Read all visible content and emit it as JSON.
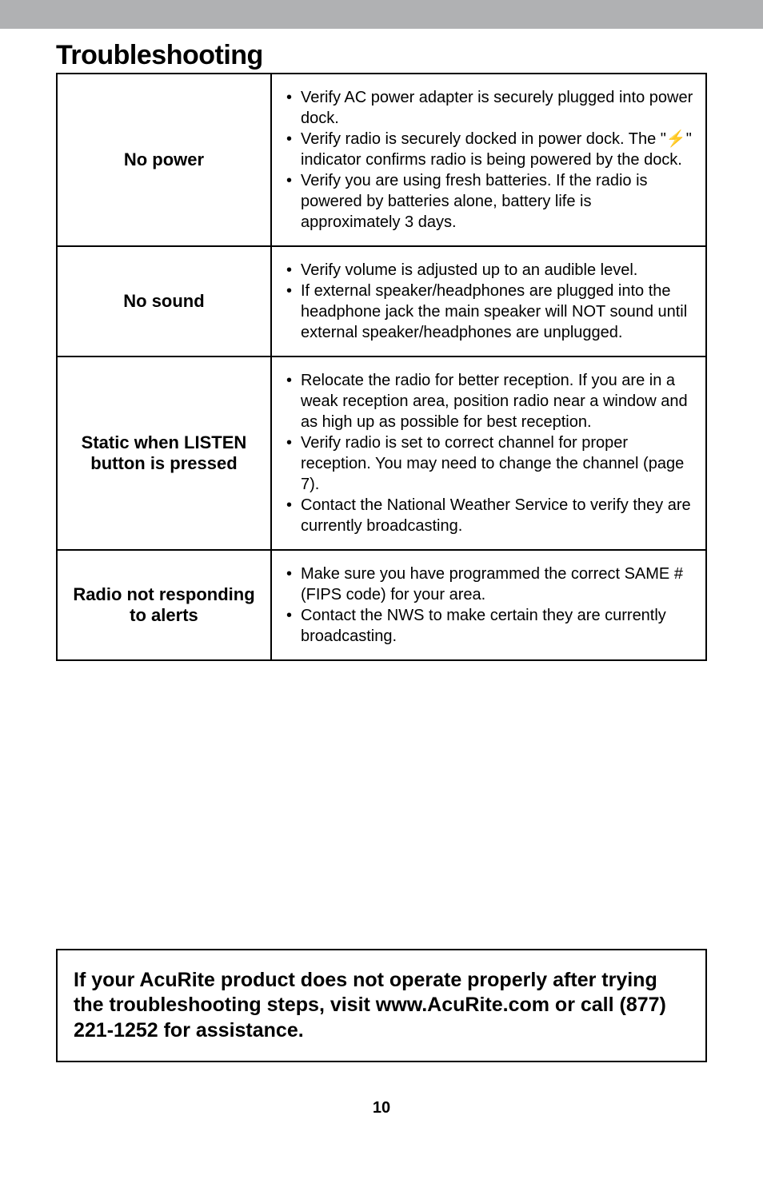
{
  "title": "Troubleshooting",
  "rows": [
    {
      "problem": "No power",
      "bullets": [
        "Verify AC power adapter is securely plugged into power dock.",
        "Verify radio is securely docked in power dock. The \"⚡\" indicator confirms radio is being powered by the dock.",
        "Verify you are using fresh batteries. If the radio is powered by batteries alone, battery life is approximately 3 days."
      ]
    },
    {
      "problem": "No sound",
      "bullets": [
        "Verify volume is adjusted up to an audible level.",
        "If external speaker/headphones are plugged into the headphone jack the main speaker will NOT sound until external speaker/headphones are unplugged."
      ]
    },
    {
      "problem": "Static when LISTEN button is pressed",
      "bullets": [
        "Relocate the radio for better reception. If you are in a weak reception area, position radio near a window and as high up as possible for best reception.",
        "Verify radio is set to correct channel for proper reception. You may need to change the channel (page 7).",
        "Contact the National Weather Service to verify they are currently broadcasting."
      ]
    },
    {
      "problem": "Radio not responding to alerts",
      "bullets": [
        "Make sure you have programmed the correct SAME # (FIPS code) for your area.",
        "Contact the NWS to make certain they are currently broadcasting."
      ]
    }
  ],
  "notice": "If your AcuRite product does not operate properly after trying the troubleshooting steps, visit www.AcuRite.com or call (877) 221-1252 for assistance.",
  "page_number": "10",
  "colors": {
    "header_bar": "#b0b1b3",
    "background": "#ffffff",
    "text": "#000000",
    "border": "#000000"
  }
}
